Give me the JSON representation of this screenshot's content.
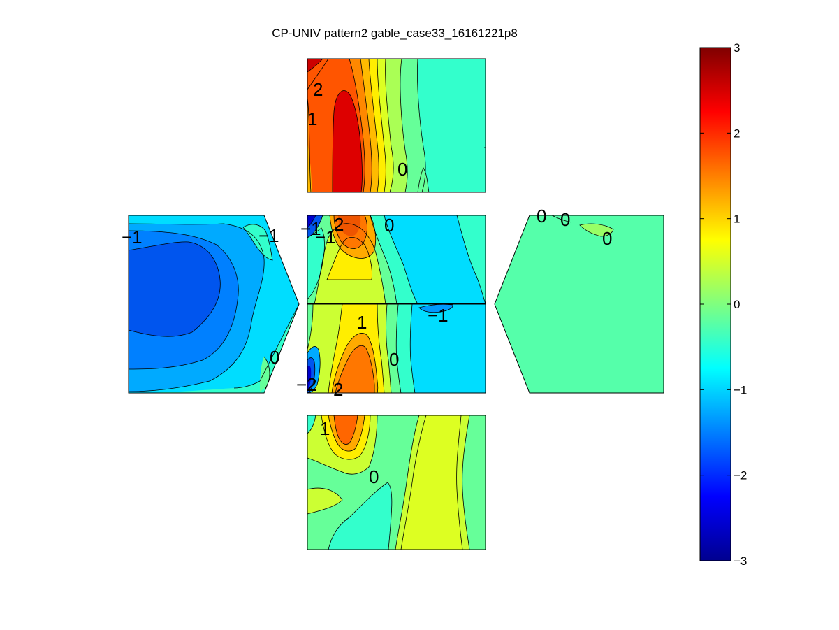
{
  "chart_data": {
    "type": "heatmap",
    "title": "CP-UNIV pattern2 gable_case33_16161221p8",
    "colormap": "jet",
    "colorbar": {
      "min": -3,
      "max": 3,
      "ticks": [
        "3",
        "2",
        "1",
        "0",
        "−1",
        "−2",
        "−3"
      ],
      "tick_values": [
        3,
        2,
        1,
        0,
        -1,
        -2,
        -3
      ],
      "placement": "right"
    },
    "panels": [
      {
        "name": "top",
        "contour_labels": [
          "2",
          "1",
          "0"
        ]
      },
      {
        "name": "left",
        "contour_labels": [
          "−1",
          "−1",
          "0"
        ]
      },
      {
        "name": "center-upper",
        "contour_labels": [
          "−1",
          "−1",
          "2",
          "0"
        ]
      },
      {
        "name": "center-lower",
        "contour_labels": [
          "1",
          "−1",
          "0",
          "−2",
          "2"
        ]
      },
      {
        "name": "right",
        "contour_labels": [
          "0",
          "0",
          "0"
        ]
      },
      {
        "name": "bottom",
        "contour_labels": [
          "1",
          "0"
        ]
      }
    ]
  }
}
